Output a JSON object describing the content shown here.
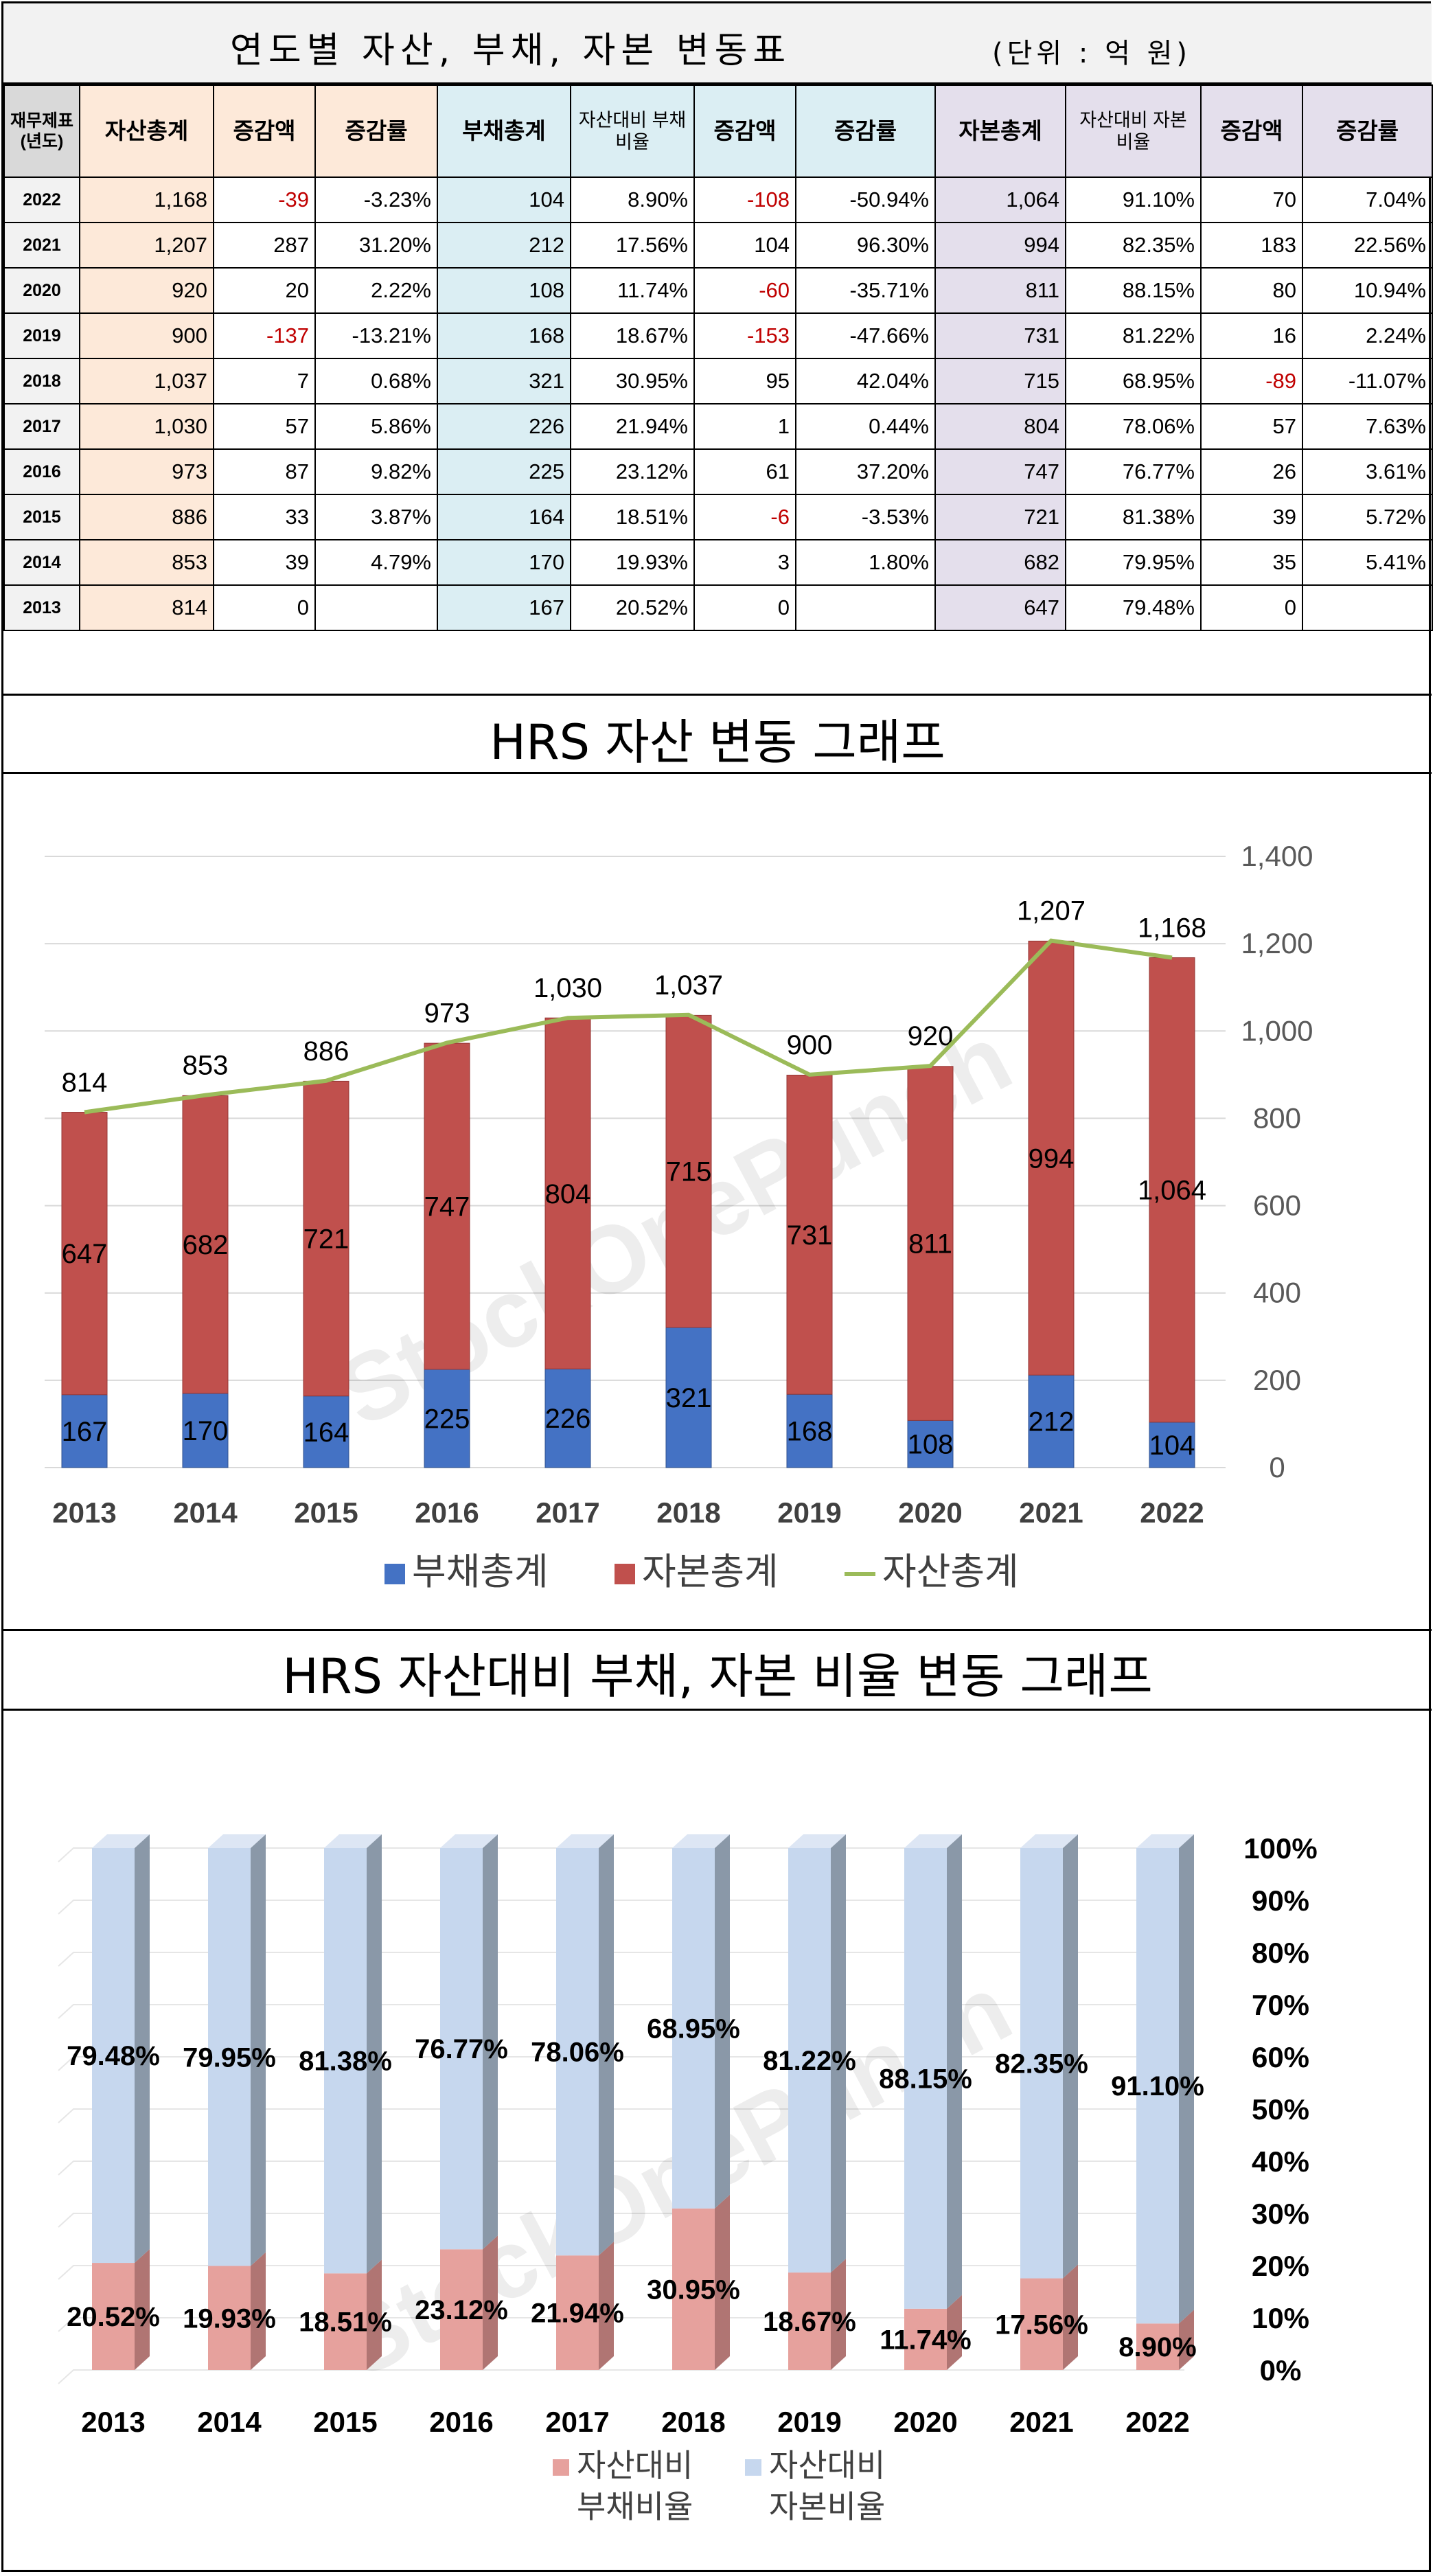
{
  "header": {
    "title": "연도별 자산, 부채, 자본 변동표",
    "unit": "(단위 : 억 원)"
  },
  "table": {
    "columns": [
      "재무제표 (년도)",
      "자산총계",
      "증감액",
      "증감률",
      "부채총계",
      "자산대비 부채비율",
      "증감액",
      "증감률",
      "자본총계",
      "자산대비 자본비율",
      "증감액",
      "증감률"
    ],
    "rows": [
      [
        "2022",
        "1,168",
        "-39",
        "-3.23%",
        "104",
        "8.90%",
        "-108",
        "-50.94%",
        "1,064",
        "91.10%",
        "70",
        "7.04%"
      ],
      [
        "2021",
        "1,207",
        "287",
        "31.20%",
        "212",
        "17.56%",
        "104",
        "96.30%",
        "994",
        "82.35%",
        "183",
        "22.56%"
      ],
      [
        "2020",
        "920",
        "20",
        "2.22%",
        "108",
        "11.74%",
        "-60",
        "-35.71%",
        "811",
        "88.15%",
        "80",
        "10.94%"
      ],
      [
        "2019",
        "900",
        "-137",
        "-13.21%",
        "168",
        "18.67%",
        "-153",
        "-47.66%",
        "731",
        "81.22%",
        "16",
        "2.24%"
      ],
      [
        "2018",
        "1,037",
        "7",
        "0.68%",
        "321",
        "30.95%",
        "95",
        "42.04%",
        "715",
        "68.95%",
        "-89",
        "-11.07%"
      ],
      [
        "2017",
        "1,030",
        "57",
        "5.86%",
        "226",
        "21.94%",
        "1",
        "0.44%",
        "804",
        "78.06%",
        "57",
        "7.63%"
      ],
      [
        "2016",
        "973",
        "87",
        "9.82%",
        "225",
        "23.12%",
        "61",
        "37.20%",
        "747",
        "76.77%",
        "26",
        "3.61%"
      ],
      [
        "2015",
        "886",
        "33",
        "3.87%",
        "164",
        "18.51%",
        "-6",
        "-3.53%",
        "721",
        "81.38%",
        "39",
        "5.72%"
      ],
      [
        "2014",
        "853",
        "39",
        "4.79%",
        "170",
        "19.93%",
        "3",
        "1.80%",
        "682",
        "79.95%",
        "35",
        "5.41%"
      ],
      [
        "2013",
        "814",
        "0",
        "",
        "167",
        "20.52%",
        "0",
        "",
        "647",
        "79.48%",
        "0",
        ""
      ]
    ]
  },
  "chart_data": [
    {
      "type": "bar",
      "title": "HRS 자산 변동 그래프",
      "categories": [
        "2013",
        "2014",
        "2015",
        "2016",
        "2017",
        "2018",
        "2019",
        "2020",
        "2021",
        "2022"
      ],
      "series": [
        {
          "name": "부채총계",
          "kind": "stacked-bar",
          "color": "#4472c4",
          "values": [
            167,
            170,
            164,
            225,
            226,
            321,
            168,
            108,
            212,
            104
          ]
        },
        {
          "name": "자본총계",
          "kind": "stacked-bar",
          "color": "#c0504d",
          "values": [
            647,
            682,
            721,
            747,
            804,
            715,
            731,
            811,
            994,
            1064
          ]
        },
        {
          "name": "자산총계",
          "kind": "line",
          "color": "#9bbb59",
          "values": [
            814,
            853,
            886,
            973,
            1030,
            1037,
            900,
            920,
            1207,
            1168
          ]
        }
      ],
      "ylim": [
        0,
        1400
      ],
      "yticks": [
        "0",
        "200",
        "400",
        "600",
        "800",
        "1,000",
        "1,200",
        "1,400"
      ],
      "legend": "bottom",
      "watermark": "StockOnePunch"
    },
    {
      "type": "bar",
      "title": "HRS 자산대비 부채, 자본 비율 변동 그래프",
      "categories": [
        "2013",
        "2014",
        "2015",
        "2016",
        "2017",
        "2018",
        "2019",
        "2020",
        "2021",
        "2022"
      ],
      "series": [
        {
          "name": "자산대비 부채비율",
          "kind": "stacked-bar-3d",
          "color": "#e6a19d",
          "values": [
            20.52,
            19.93,
            18.51,
            23.12,
            21.94,
            30.95,
            18.67,
            11.74,
            17.56,
            8.9
          ],
          "labels": [
            "20.52%",
            "19.93%",
            "18.51%",
            "23.12%",
            "21.94%",
            "30.95%",
            "18.67%",
            "11.74%",
            "17.56%",
            "8.90%"
          ]
        },
        {
          "name": "자산대비 자본비율",
          "kind": "stacked-bar-3d",
          "color": "#c6d7ee",
          "values": [
            79.48,
            79.95,
            81.38,
            76.77,
            78.06,
            68.95,
            81.22,
            88.15,
            82.35,
            91.1
          ],
          "labels": [
            "79.48%",
            "79.95%",
            "81.38%",
            "76.77%",
            "78.06%",
            "68.95%",
            "81.22%",
            "88.15%",
            "82.35%",
            "91.10%"
          ]
        }
      ],
      "ylim": [
        0,
        100
      ],
      "yticks": [
        "0%",
        "10%",
        "20%",
        "30%",
        "40%",
        "50%",
        "60%",
        "70%",
        "80%",
        "90%",
        "100%"
      ],
      "legend": "bottom",
      "legend_labels": [
        [
          "자산대비",
          "부채비율"
        ],
        [
          "자산대비",
          "자본비율"
        ]
      ],
      "watermark": "StockOnePunch"
    }
  ]
}
